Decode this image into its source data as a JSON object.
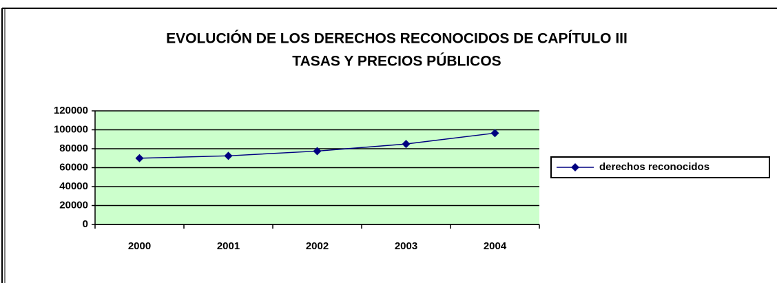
{
  "chart_data": {
    "type": "line",
    "title": [
      "EVOLUCIÓN DE LOS DERECHOS RECONOCIDOS DE CAPÍTULO III",
      "TASAS Y PRECIOS PÚBLICOS"
    ],
    "categories": [
      "2000",
      "2001",
      "2002",
      "2003",
      "2004"
    ],
    "series": [
      {
        "name": "derechos reconocidos",
        "color": "#000080",
        "values": [
          70000,
          72500,
          77500,
          85000,
          96500
        ]
      }
    ],
    "ylim": [
      0,
      120000
    ],
    "yticks": [
      0,
      20000,
      40000,
      60000,
      80000,
      100000,
      120000
    ],
    "grid": true,
    "legend": "right",
    "plot_background": "#ccffcc"
  }
}
